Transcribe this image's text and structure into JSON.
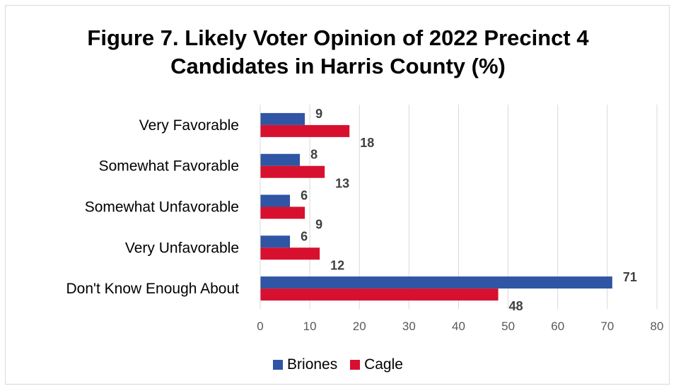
{
  "chart_data": {
    "type": "bar",
    "orientation": "horizontal",
    "title_lines": [
      "Figure 7. Likely Voter Opinion of 2022 Precinct 4",
      "Candidates in Harris County (%)"
    ],
    "categories": [
      "Very Favorable",
      "Somewhat Favorable",
      "Somewhat Unfavorable",
      "Very Unfavorable",
      "Don't Know Enough About"
    ],
    "series": [
      {
        "name": "Briones",
        "color": "#2f55a4",
        "values": [
          9,
          8,
          6,
          6,
          71
        ]
      },
      {
        "name": "Cagle",
        "color": "#d7102f",
        "values": [
          18,
          13,
          9,
          12,
          48
        ]
      }
    ],
    "xlim": [
      0,
      80
    ],
    "ticks": [
      0,
      10,
      20,
      30,
      40,
      50,
      60,
      70,
      80
    ],
    "grid": "vertical",
    "legend": "bottom"
  }
}
